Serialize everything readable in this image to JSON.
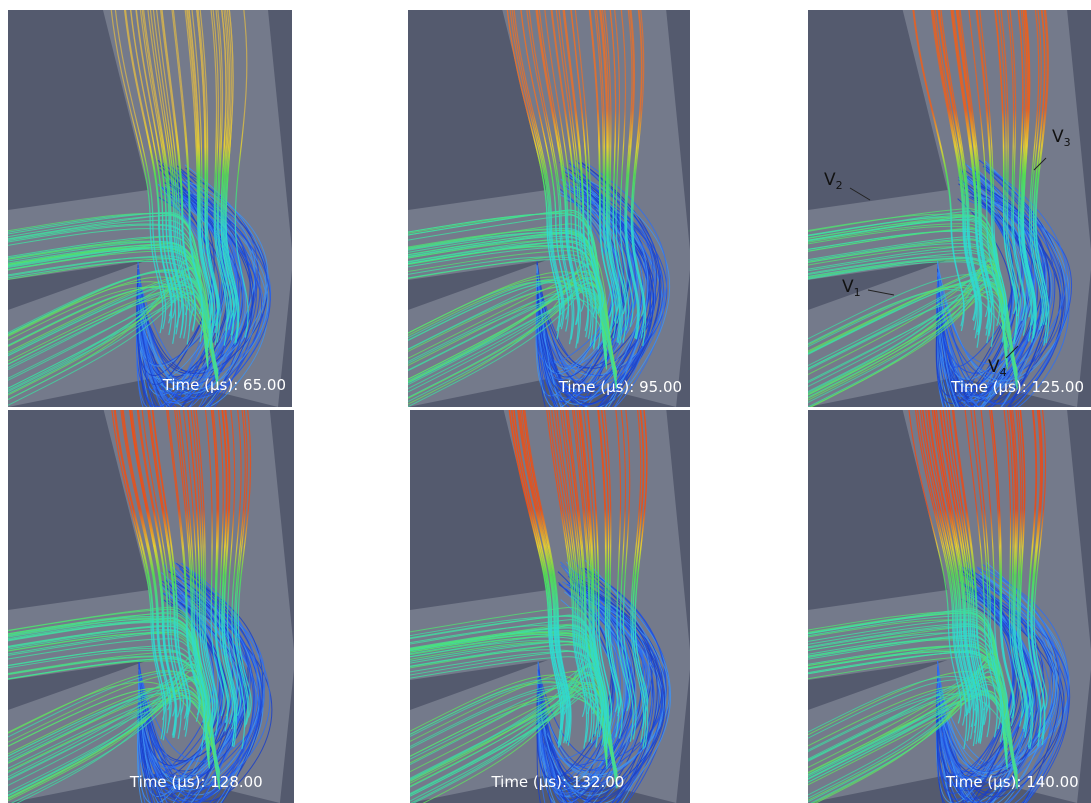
{
  "panels": [
    {
      "time_label": "Time (µs): 65.00"
    },
    {
      "time_label": "Time (µs): 95.00"
    },
    {
      "time_label": "Time (µs): 125.00",
      "annotations": [
        {
          "letter": "V",
          "subscript": "3"
        },
        {
          "letter": "V",
          "subscript": "2"
        },
        {
          "letter": "V",
          "subscript": "1"
        },
        {
          "letter": "V",
          "subscript": "4"
        }
      ]
    },
    {
      "time_label": "Time (µs): 128.00"
    },
    {
      "time_label": "Time (µs): 132.00"
    },
    {
      "time_label": "Time (µs): 140.00"
    }
  ]
}
